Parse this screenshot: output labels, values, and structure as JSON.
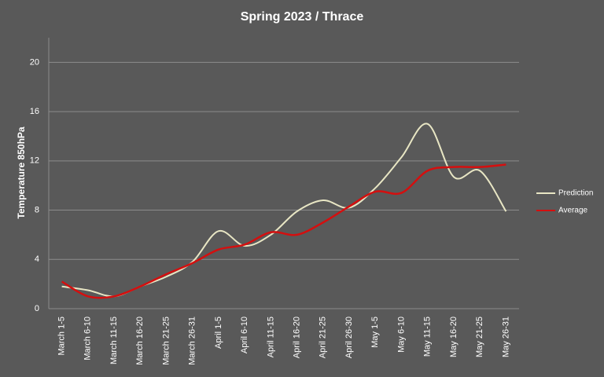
{
  "chart_data": {
    "type": "line",
    "title": "Spring 2023 / Thrace",
    "ylabel": "Temperature 850hPa",
    "categories": [
      "March 1-5",
      "March 6-10",
      "March 11-15",
      "March 16-20",
      "March 21-25",
      "March 26-31",
      "April 1-5",
      "April 6-10",
      "April 11-15",
      "April 16-20",
      "April 21-25",
      "April 26-30",
      "May 1-5",
      "May 6-10",
      "May 11-15",
      "May 16-20",
      "May 21-25",
      "May 26-31"
    ],
    "series": [
      {
        "name": "Prediction",
        "color": "#e8e6c4",
        "values": [
          1.8,
          1.5,
          1.0,
          1.8,
          2.6,
          3.8,
          6.3,
          5.1,
          6.0,
          7.9,
          8.8,
          8.2,
          9.8,
          12.3,
          15.0,
          10.7,
          11.2,
          7.9
        ]
      },
      {
        "name": "Average",
        "color": "#d40f0f",
        "values": [
          2.2,
          1.0,
          1.0,
          1.8,
          2.8,
          3.7,
          4.8,
          5.2,
          6.2,
          6.0,
          7.0,
          8.3,
          9.5,
          9.4,
          11.2,
          11.5,
          11.5,
          11.7
        ]
      }
    ],
    "ylim": [
      0,
      22
    ],
    "yticks": [
      0,
      4,
      8,
      12,
      16,
      20
    ],
    "grid": true,
    "legend": "right"
  }
}
